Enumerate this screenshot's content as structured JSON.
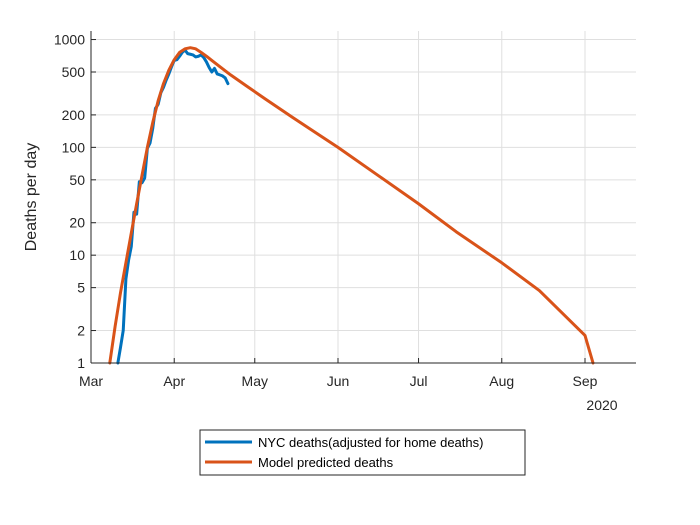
{
  "chart_data": {
    "type": "line",
    "xlabel": "",
    "ylabel": "Deaths per day",
    "yscale": "log",
    "ylim": [
      1,
      1200
    ],
    "xlim": [
      "2020-03-01",
      "2020-09-20"
    ],
    "grid": true,
    "legend_position": "bottom-outside",
    "x_ticks": [
      {
        "date": "2020-03-01",
        "label": "Mar"
      },
      {
        "date": "2020-04-01",
        "label": "Apr"
      },
      {
        "date": "2020-05-01",
        "label": "May"
      },
      {
        "date": "2020-06-01",
        "label": "Jun"
      },
      {
        "date": "2020-07-01",
        "label": "Jul"
      },
      {
        "date": "2020-08-01",
        "label": "Aug"
      },
      {
        "date": "2020-09-01",
        "label": "Sep"
      }
    ],
    "x_secondary_label": "2020",
    "y_ticks": [
      {
        "value": 1,
        "label": "1"
      },
      {
        "value": 2,
        "label": "2"
      },
      {
        "value": 5,
        "label": "5"
      },
      {
        "value": 10,
        "label": "10"
      },
      {
        "value": 20,
        "label": "20"
      },
      {
        "value": 50,
        "label": "50"
      },
      {
        "value": 100,
        "label": "100"
      },
      {
        "value": 200,
        "label": "200"
      },
      {
        "value": 500,
        "label": "500"
      },
      {
        "value": 1000,
        "label": "1000"
      }
    ],
    "series": [
      {
        "name": "NYC deaths(adjusted for home deaths)",
        "color": "#0072bd",
        "points": [
          [
            "2020-03-11",
            1
          ],
          [
            "2020-03-12",
            1.4
          ],
          [
            "2020-03-13",
            2
          ],
          [
            "2020-03-14",
            6
          ],
          [
            "2020-03-15",
            9
          ],
          [
            "2020-03-16",
            12
          ],
          [
            "2020-03-17",
            25
          ],
          [
            "2020-03-18",
            24
          ],
          [
            "2020-03-19",
            48
          ],
          [
            "2020-03-20",
            47
          ],
          [
            "2020-03-21",
            52
          ],
          [
            "2020-03-22",
            98
          ],
          [
            "2020-03-23",
            110
          ],
          [
            "2020-03-24",
            150
          ],
          [
            "2020-03-25",
            230
          ],
          [
            "2020-03-26",
            250
          ],
          [
            "2020-03-27",
            320
          ],
          [
            "2020-03-28",
            360
          ],
          [
            "2020-03-29",
            420
          ],
          [
            "2020-03-30",
            480
          ],
          [
            "2020-03-31",
            560
          ],
          [
            "2020-04-01",
            640
          ],
          [
            "2020-04-02",
            650
          ],
          [
            "2020-04-03",
            700
          ],
          [
            "2020-04-04",
            760
          ],
          [
            "2020-04-05",
            800
          ],
          [
            "2020-04-06",
            740
          ],
          [
            "2020-04-07",
            730
          ],
          [
            "2020-04-08",
            720
          ],
          [
            "2020-04-09",
            690
          ],
          [
            "2020-04-10",
            700
          ],
          [
            "2020-04-11",
            720
          ],
          [
            "2020-04-12",
            680
          ],
          [
            "2020-04-13",
            620
          ],
          [
            "2020-04-14",
            550
          ],
          [
            "2020-04-15",
            500
          ],
          [
            "2020-04-16",
            540
          ],
          [
            "2020-04-17",
            480
          ],
          [
            "2020-04-18",
            470
          ],
          [
            "2020-04-19",
            460
          ],
          [
            "2020-04-20",
            440
          ],
          [
            "2020-04-21",
            390
          ]
        ]
      },
      {
        "name": "Model predicted deaths",
        "color": "#d95319",
        "points": [
          [
            "2020-03-08",
            1
          ],
          [
            "2020-03-10",
            2.2
          ],
          [
            "2020-03-12",
            4.5
          ],
          [
            "2020-03-14",
            8.5
          ],
          [
            "2020-03-16",
            16
          ],
          [
            "2020-03-18",
            30
          ],
          [
            "2020-03-20",
            55
          ],
          [
            "2020-03-22",
            100
          ],
          [
            "2020-03-24",
            170
          ],
          [
            "2020-03-26",
            270
          ],
          [
            "2020-03-28",
            390
          ],
          [
            "2020-03-30",
            520
          ],
          [
            "2020-04-01",
            650
          ],
          [
            "2020-04-03",
            760
          ],
          [
            "2020-04-05",
            820
          ],
          [
            "2020-04-07",
            840
          ],
          [
            "2020-04-09",
            820
          ],
          [
            "2020-04-11",
            760
          ],
          [
            "2020-04-13",
            700
          ],
          [
            "2020-04-15",
            640
          ],
          [
            "2020-04-18",
            560
          ],
          [
            "2020-04-22",
            470
          ],
          [
            "2020-04-28",
            370
          ],
          [
            "2020-05-05",
            280
          ],
          [
            "2020-05-15",
            190
          ],
          [
            "2020-06-01",
            100
          ],
          [
            "2020-06-15",
            57
          ],
          [
            "2020-07-01",
            30
          ],
          [
            "2020-07-15",
            16.5
          ],
          [
            "2020-08-01",
            8.5
          ],
          [
            "2020-08-15",
            4.7
          ],
          [
            "2020-09-01",
            1.8
          ],
          [
            "2020-09-04",
            1
          ]
        ]
      }
    ]
  }
}
